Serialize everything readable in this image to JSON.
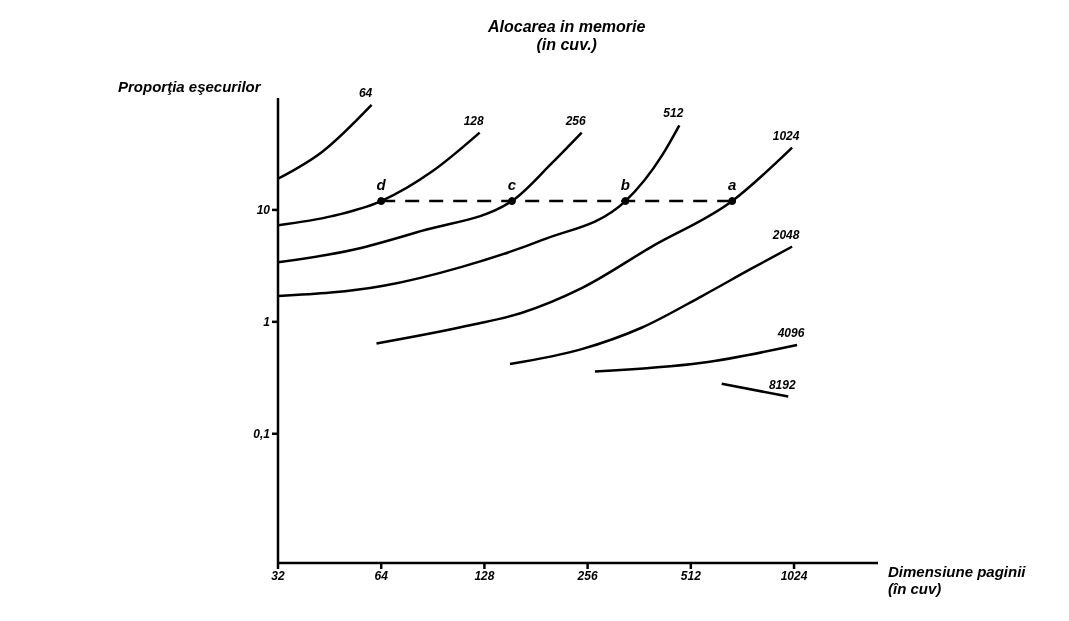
{
  "chart_data": {
    "type": "line",
    "title": "Alocarea in memorie\n(in cuv.)",
    "ylabel": "Proporţia eşecurilor",
    "xlabel": "Dimensiune paginii\n(în cuv)",
    "log": "xy",
    "xlim": [
      32,
      1800
    ],
    "ylim": [
      0.007,
      100
    ],
    "xticks": [
      32,
      64,
      128,
      256,
      512,
      1024
    ],
    "yticks": [
      {
        "value": 0.1,
        "label": "0,1"
      },
      1,
      10
    ],
    "grid": false,
    "legend": false,
    "marker": "none",
    "line_style": "solid",
    "series": [
      {
        "name": "64",
        "color": "#000000",
        "x": [
          32,
          43,
          60
        ],
        "values": [
          19,
          33,
          87
        ]
      },
      {
        "name": "128",
        "color": "#000000",
        "x": [
          32,
          46,
          64,
          90,
          124
        ],
        "values": [
          7.3,
          8.8,
          12,
          22,
          49
        ]
      },
      {
        "name": "256",
        "color": "#000000",
        "x": [
          32,
          53,
          84,
          154,
          201,
          246
        ],
        "values": [
          3.4,
          4.4,
          6.5,
          12,
          26,
          49
        ]
      },
      {
        "name": "512",
        "color": "#000000",
        "x": [
          32,
          65,
          110,
          189,
          330,
          423,
          474
        ],
        "values": [
          1.7,
          2.1,
          3.1,
          5.4,
          12,
          31,
          57
        ]
      },
      {
        "name": "1024",
        "color": "#000000",
        "x": [
          62,
          118,
          164,
          246,
          394,
          676,
          1011
        ],
        "values": [
          0.64,
          0.94,
          1.2,
          2,
          4.7,
          12,
          36
        ]
      },
      {
        "name": "2048",
        "color": "#000000",
        "x": [
          152,
          246,
          369,
          552,
          771,
          1011
        ],
        "values": [
          0.42,
          0.57,
          0.89,
          1.7,
          3,
          4.7
        ]
      },
      {
        "name": "4096",
        "color": "#000000",
        "x": [
          269,
          552,
          1045
        ],
        "values": [
          0.36,
          0.43,
          0.62
        ]
      },
      {
        "name": "8192",
        "color": "#000000",
        "x": [
          630,
          985
        ],
        "values": [
          0.28,
          0.215
        ]
      },
      {
        "color": "#000000",
        "line_style": "dashed",
        "x": [
          64,
          676
        ],
        "values": [
          12,
          12
        ]
      }
    ],
    "annotations": [
      {
        "text": "d",
        "x": 64,
        "y": 12
      },
      {
        "text": "c",
        "x": 154,
        "y": 12
      },
      {
        "text": "b",
        "x": 330,
        "y": 12
      },
      {
        "text": "a",
        "x": 676,
        "y": 12
      }
    ]
  }
}
